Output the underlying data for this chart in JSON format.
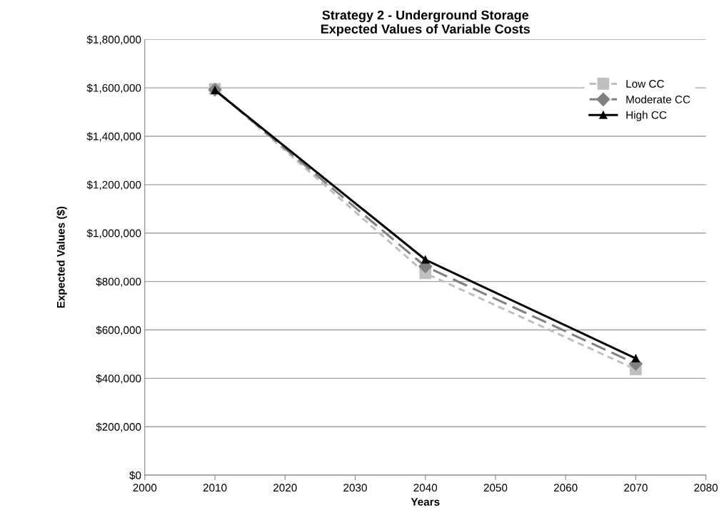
{
  "chart_data": {
    "type": "line",
    "title": "Strategy 2 - Underground Storage\nExpected Values of Variable Costs",
    "xlabel": "Years",
    "ylabel": "Expected Values ($)",
    "x": [
      2010,
      2040,
      2070
    ],
    "series": [
      {
        "name": "Low CC",
        "color": "#bfbfbf",
        "values": [
          1595000,
          834000,
          437000
        ],
        "marker": "square",
        "line_style": "dashed"
      },
      {
        "name": "Moderate CC",
        "color": "#808080",
        "values": [
          1592000,
          862000,
          460000
        ],
        "marker": "diamond",
        "line_style": "longdash"
      },
      {
        "name": "High CC",
        "color": "#000000",
        "values": [
          1590000,
          890000,
          482000
        ],
        "marker": "triangle",
        "line_style": "solid"
      }
    ],
    "xlim": [
      2000,
      2080
    ],
    "xticks": [
      2000,
      2010,
      2020,
      2030,
      2040,
      2050,
      2060,
      2070,
      2080
    ],
    "ylim": [
      0,
      1800000
    ],
    "yticks": [
      {
        "value": 0,
        "label": "$0"
      },
      {
        "value": 200000,
        "label": "$200,000"
      },
      {
        "value": 400000,
        "label": "$400,000"
      },
      {
        "value": 600000,
        "label": "$600,000"
      },
      {
        "value": 800000,
        "label": "$800,000"
      },
      {
        "value": 1000000,
        "label": "$1,000,000"
      },
      {
        "value": 1200000,
        "label": "$1,200,000"
      },
      {
        "value": 1400000,
        "label": "$1,400,000"
      },
      {
        "value": 1600000,
        "label": "$1,600,000"
      },
      {
        "value": 1800000,
        "label": "$1,800,000"
      }
    ],
    "grid": "y",
    "legend": "top right"
  }
}
